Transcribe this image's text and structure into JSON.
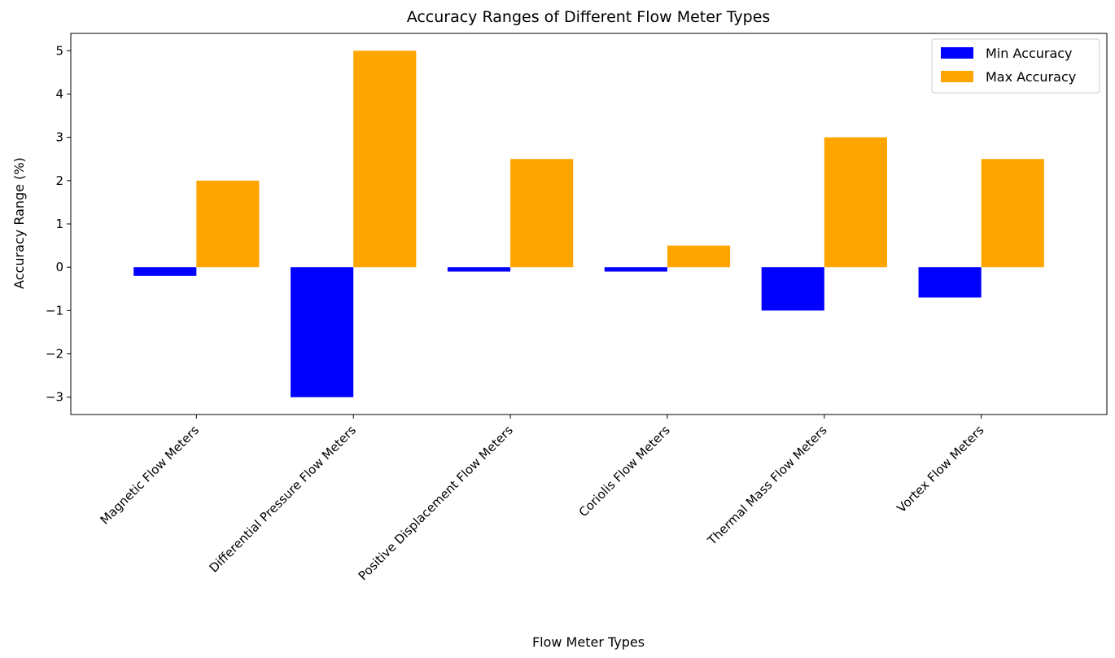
{
  "chart_data": {
    "type": "bar",
    "title": "Accuracy Ranges of Different Flow Meter Types",
    "xlabel": "Flow Meter Types",
    "ylabel": "Accuracy Range (%)",
    "categories": [
      "Magnetic Flow Meters",
      "Differential Pressure Flow Meters",
      "Positive Displacement Flow Meters",
      "Coriolis Flow Meters",
      "Thermal Mass Flow Meters",
      "Vortex Flow Meters"
    ],
    "series": [
      {
        "name": "Min Accuracy",
        "color": "#0000ff",
        "values": [
          -0.2,
          -3.0,
          -0.1,
          -0.1,
          -1.0,
          -0.7
        ]
      },
      {
        "name": "Max Accuracy",
        "color": "#ffa500",
        "values": [
          2.0,
          5.0,
          2.5,
          0.5,
          3.0,
          2.5
        ]
      }
    ],
    "ylim": [
      -3.4,
      5.4
    ],
    "yticks": [
      -3,
      -2,
      -1,
      0,
      1,
      2,
      3,
      4,
      5
    ],
    "ytick_labels": [
      "−3",
      "−2",
      "−1",
      "0",
      "1",
      "2",
      "3",
      "4",
      "5"
    ],
    "legend_position": "upper right",
    "grid": false
  }
}
